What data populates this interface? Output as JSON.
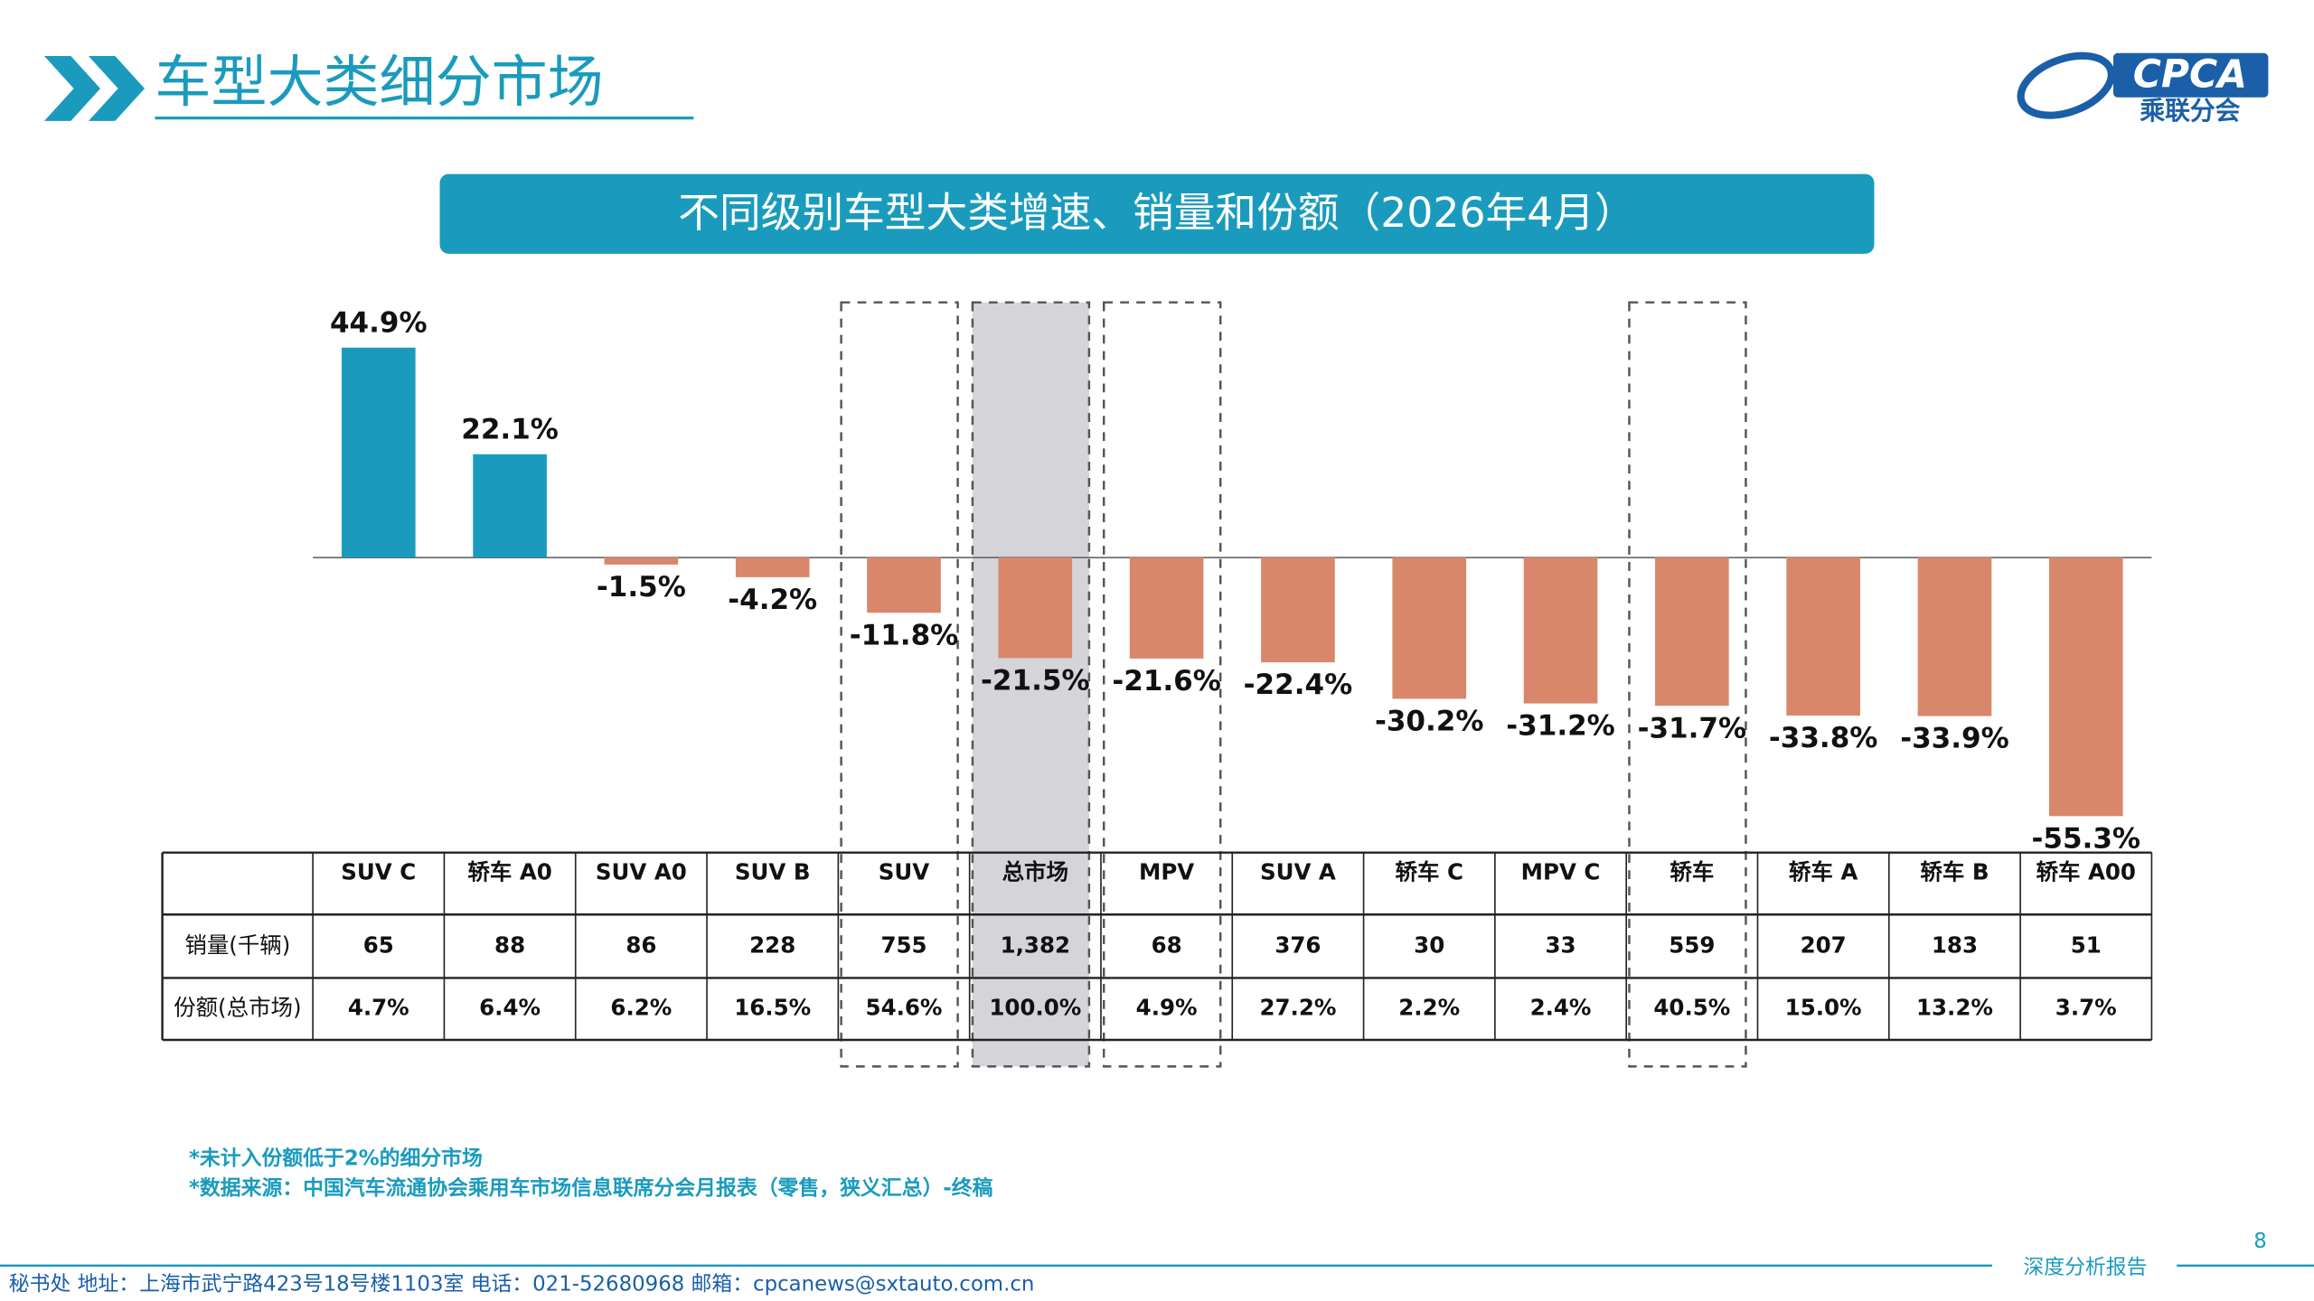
{
  "header": {
    "title": "车型大类细分市场",
    "logo_text": "CPCA",
    "logo_sub": "乘联分会"
  },
  "chart_data": {
    "type": "bar",
    "title": "不同级别车型大类增速、销量和份额（2026年4月）",
    "categories": [
      "SUV C",
      "轿车 A0",
      "SUV A0",
      "SUV B",
      "SUV",
      "总市场",
      "MPV",
      "SUV A",
      "轿车 C",
      "MPV C",
      "轿车",
      "轿车 A",
      "轿车 B",
      "轿车 A00"
    ],
    "values": [
      44.9,
      22.1,
      -1.5,
      -4.2,
      -11.8,
      -21.5,
      -21.6,
      -22.4,
      -30.2,
      -31.2,
      -31.7,
      -33.8,
      -33.9,
      -55.3
    ],
    "value_labels": [
      "44.9%",
      "22.1%",
      "-1.5%",
      "-4.2%",
      "-11.8%",
      "-21.5%",
      "-21.6%",
      "-22.4%",
      "-30.2%",
      "-31.2%",
      "-31.7%",
      "-33.8%",
      "-33.9%",
      "-55.3%"
    ],
    "positive_color": "#1a9bbd",
    "negative_color": "#d9876a",
    "dashed_boxes": [
      4,
      6,
      10
    ],
    "shaded": [
      5
    ]
  },
  "table": {
    "row_labels": [
      "销量(千辆)",
      "份额(总市场)"
    ],
    "rows": [
      [
        "65",
        "88",
        "86",
        "228",
        "755",
        "1,382",
        "68",
        "376",
        "30",
        "33",
        "559",
        "207",
        "183",
        "51"
      ],
      [
        "4.7%",
        "6.4%",
        "6.2%",
        "16.5%",
        "54.6%",
        "100.0%",
        "4.9%",
        "27.2%",
        "2.2%",
        "2.4%",
        "40.5%",
        "15.0%",
        "13.2%",
        "3.7%"
      ]
    ]
  },
  "notes": [
    "*未计入份额低于2%的细分市场",
    "*数据来源：中国汽车流通协会乘用车市场信息联席分会月报表（零售，狭义汇总）-终稿"
  ],
  "footer": {
    "address": "秘书处   地址：上海市武宁路423号18号楼1103室  电话：021-52680968   邮箱：cpcanews@sxtauto.com.cn",
    "report": "深度分析报告",
    "page": "8"
  }
}
